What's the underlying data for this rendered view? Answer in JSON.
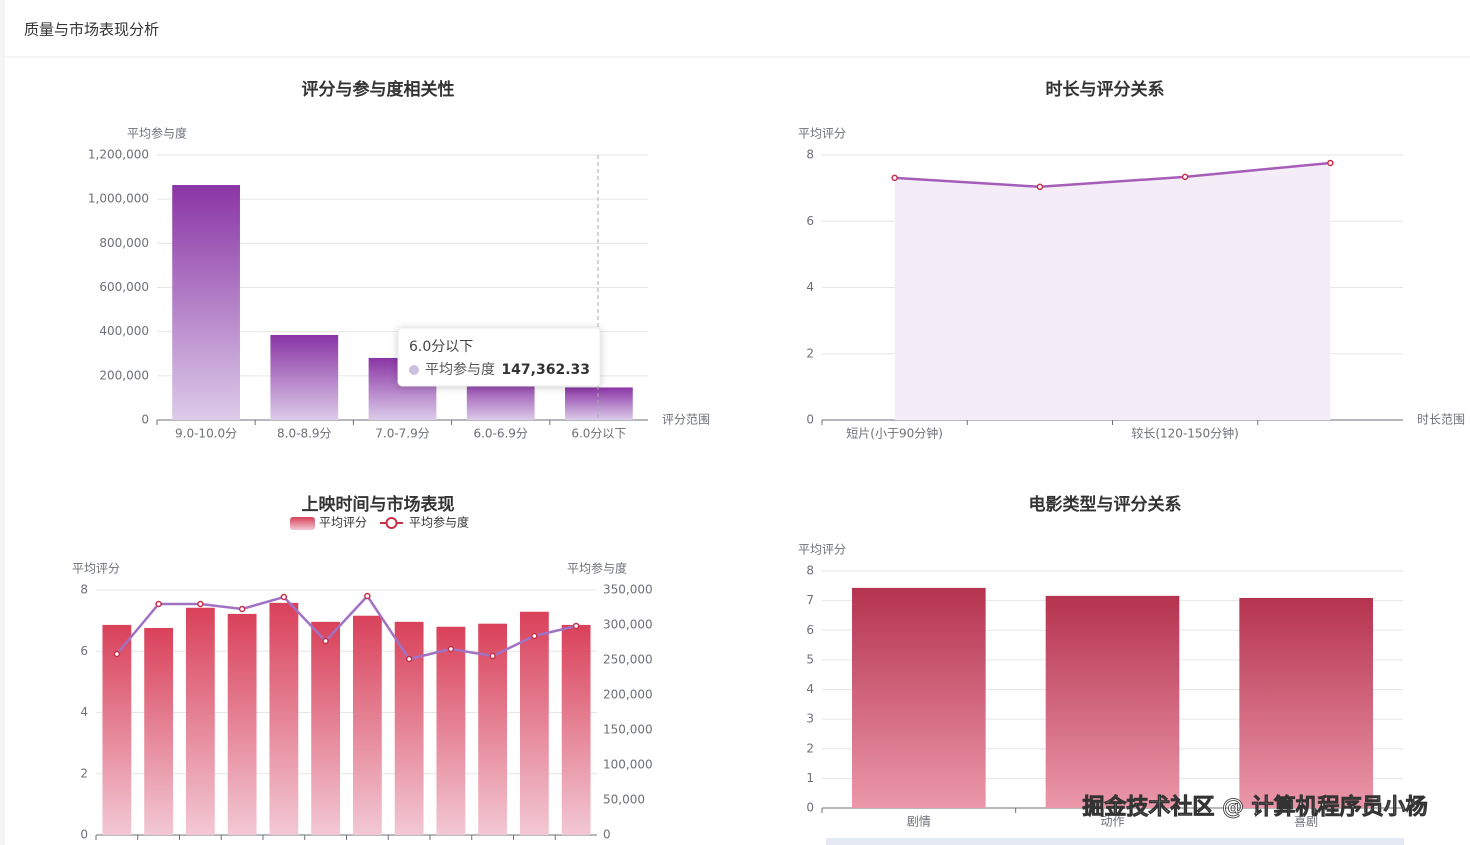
{
  "header": {
    "title": "质量与市场表现分析"
  },
  "watermark": "掘金技术社区 @ 计算机程序员小杨",
  "chart_data": [
    {
      "type": "bar",
      "title": "评分与参与度相关性",
      "y_label": "平均参与度",
      "x_label": "评分范围",
      "categories": [
        "9.0-10.0分",
        "8.0-8.9分",
        "7.0-7.9分",
        "6.0-6.9分",
        "6.0分以下"
      ],
      "values": [
        1064000,
        385000,
        281000,
        181000,
        147362.33
      ],
      "gradient": [
        "#8a35a5",
        "#dccbe9"
      ],
      "ylim": [
        0,
        1200000
      ],
      "yticks": [
        0,
        {
          "value": 200000,
          "label": "200,000"
        },
        {
          "value": 400000,
          "label": "400,000"
        },
        {
          "value": 600000,
          "label": "600,000"
        },
        {
          "value": 800000,
          "label": "800,000"
        },
        {
          "value": 1000000,
          "label": "1,000,000"
        },
        {
          "value": 1200000,
          "label": "1,200,000"
        }
      ],
      "grid": true,
      "tooltip": {
        "title": "6.0分以下",
        "name": "平均参与度",
        "value": "147,362.33"
      }
    },
    {
      "type": "area",
      "title": "时长与评分关系",
      "y_label": "平均评分",
      "x_label": "时长范围",
      "categories": [
        "短片(小于90分钟)",
        null,
        "较长(120-150分钟)",
        null
      ],
      "values": [
        7.31,
        7.04,
        7.34,
        7.76
      ],
      "color": "#a55db9",
      "fill": "#f4ecf6",
      "marker_color": "#c8304a",
      "ylim": [
        0,
        8
      ],
      "yticks": [
        0,
        2,
        4,
        6,
        8
      ],
      "grid": true
    },
    {
      "type": "combo",
      "title": "上映时间与市场表现",
      "y_label": "平均评分",
      "y2_label": "平均参与度",
      "legend": "top",
      "categories": [
        null,
        null,
        null,
        null,
        null,
        null,
        null,
        null,
        null,
        null,
        null,
        null
      ],
      "series": [
        {
          "name": "平均评分",
          "type": "bar",
          "gradient": [
            "#d9415a",
            "#f2c8d4"
          ],
          "values": [
            6.86,
            6.76,
            7.42,
            7.22,
            7.58,
            6.96,
            7.16,
            6.96,
            6.8,
            6.9,
            7.29,
            6.86
          ]
        },
        {
          "name": "平均参与度",
          "type": "line",
          "axis": "y2",
          "color": "#a272c2",
          "marker_color": "#c8304a",
          "values": [
            258600,
            330000,
            330000,
            322900,
            340000,
            277100,
            341400,
            251400,
            265700,
            255700,
            284300,
            298600
          ]
        }
      ],
      "ylim": [
        0,
        8
      ],
      "yticks": [
        0,
        2,
        4,
        6,
        8
      ],
      "y2lim": [
        0,
        350000
      ],
      "y2ticks": [
        0,
        {
          "value": 50000,
          "label": "50,000"
        },
        {
          "value": 100000,
          "label": "100,000"
        },
        {
          "value": 150000,
          "label": "150,000"
        },
        {
          "value": 200000,
          "label": "200,000"
        },
        {
          "value": 250000,
          "label": "250,000"
        },
        {
          "value": 300000,
          "label": "300,000"
        },
        {
          "value": 350000,
          "label": "350,000"
        }
      ],
      "grid": true
    },
    {
      "type": "bar",
      "title": "电影类型与评分关系",
      "y_label": "平均评分",
      "categories": [
        "剧情",
        "动作",
        "喜剧"
      ],
      "values": [
        7.43,
        7.16,
        7.09
      ],
      "gradient": [
        "#b5334f",
        "#eb97aa"
      ],
      "ylim": [
        0,
        8
      ],
      "yticks": [
        0,
        1,
        2,
        3,
        4,
        5,
        6,
        7,
        8
      ],
      "grid": true
    }
  ]
}
